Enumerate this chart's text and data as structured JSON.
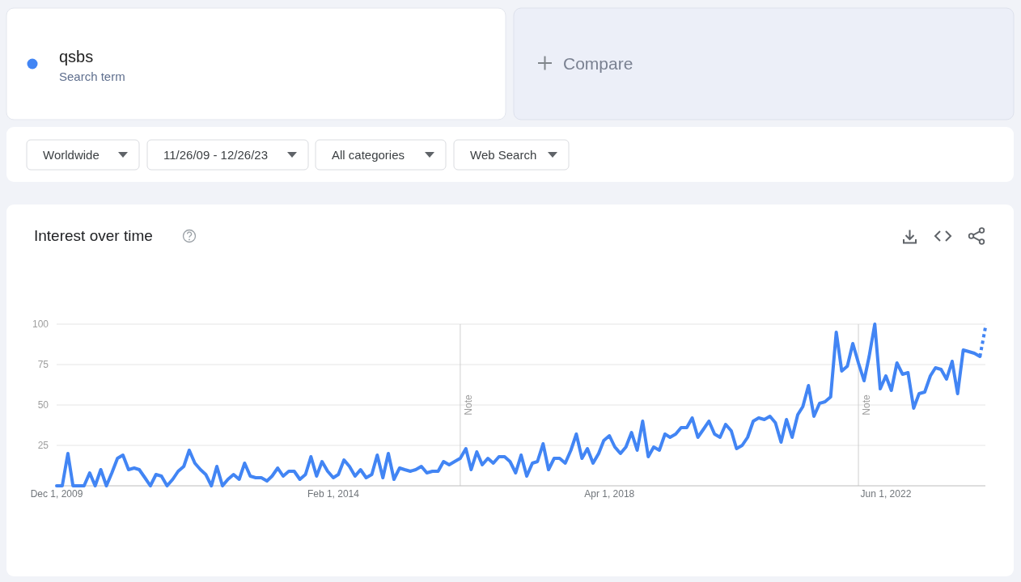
{
  "chart_data": {
    "type": "line",
    "title": "Interest over time",
    "x": [
      "2009-12",
      "2010-01",
      "2010-02",
      "2010-03",
      "2010-04",
      "2010-05",
      "2010-06",
      "2010-07",
      "2010-08",
      "2010-09",
      "2010-10",
      "2010-11",
      "2010-12",
      "2011-01",
      "2011-02",
      "2011-03",
      "2011-04",
      "2011-05",
      "2011-06",
      "2011-07",
      "2011-08",
      "2011-09",
      "2011-10",
      "2011-11",
      "2011-12",
      "2012-01",
      "2012-02",
      "2012-03",
      "2012-04",
      "2012-05",
      "2012-06",
      "2012-07",
      "2012-08",
      "2012-09",
      "2012-10",
      "2012-11",
      "2012-12",
      "2013-01",
      "2013-02",
      "2013-03",
      "2013-04",
      "2013-05",
      "2013-06",
      "2013-07",
      "2013-08",
      "2013-09",
      "2013-10",
      "2013-11",
      "2013-12",
      "2014-01",
      "2014-02",
      "2014-03",
      "2014-04",
      "2014-05",
      "2014-06",
      "2014-07",
      "2014-08",
      "2014-09",
      "2014-10",
      "2014-11",
      "2014-12",
      "2015-01",
      "2015-02",
      "2015-03",
      "2015-04",
      "2015-05",
      "2015-06",
      "2015-07",
      "2015-08",
      "2015-09",
      "2015-10",
      "2015-11",
      "2015-12",
      "2016-01",
      "2016-02",
      "2016-03",
      "2016-04",
      "2016-05",
      "2016-06",
      "2016-07",
      "2016-08",
      "2016-09",
      "2016-10",
      "2016-11",
      "2016-12",
      "2017-01",
      "2017-02",
      "2017-03",
      "2017-04",
      "2017-05",
      "2017-06",
      "2017-07",
      "2017-08",
      "2017-09",
      "2017-10",
      "2017-11",
      "2017-12",
      "2018-01",
      "2018-02",
      "2018-03",
      "2018-04",
      "2018-05",
      "2018-06",
      "2018-07",
      "2018-08",
      "2018-09",
      "2018-10",
      "2018-11",
      "2018-12",
      "2019-01",
      "2019-02",
      "2019-03",
      "2019-04",
      "2019-05",
      "2019-06",
      "2019-07",
      "2019-08",
      "2019-09",
      "2019-10",
      "2019-11",
      "2019-12",
      "2020-01",
      "2020-02",
      "2020-03",
      "2020-04",
      "2020-05",
      "2020-06",
      "2020-07",
      "2020-08",
      "2020-09",
      "2020-10",
      "2020-11",
      "2020-12",
      "2021-01",
      "2021-02",
      "2021-03",
      "2021-04",
      "2021-05",
      "2021-06",
      "2021-07",
      "2021-08",
      "2021-09",
      "2021-10",
      "2021-11",
      "2021-12",
      "2022-01",
      "2022-02",
      "2022-03",
      "2022-04",
      "2022-05",
      "2022-06",
      "2022-07",
      "2022-08",
      "2022-09",
      "2022-10",
      "2022-11",
      "2022-12",
      "2023-01",
      "2023-02",
      "2023-03",
      "2023-04",
      "2023-05",
      "2023-06",
      "2023-07",
      "2023-08",
      "2023-09",
      "2023-10",
      "2023-11"
    ],
    "series": [
      {
        "name": "qsbs",
        "color": "#4285f4",
        "values": [
          0,
          0,
          20,
          0,
          0,
          0,
          8,
          0,
          10,
          0,
          8,
          17,
          19,
          10,
          11,
          10,
          5,
          0,
          7,
          6,
          0,
          4,
          9,
          12,
          22,
          14,
          10,
          7,
          0,
          12,
          0,
          4,
          7,
          4,
          14,
          6,
          5,
          5,
          3,
          6,
          11,
          6,
          9,
          9,
          4,
          7,
          18,
          6,
          15,
          9,
          5,
          7,
          16,
          12,
          6,
          10,
          5,
          7,
          19,
          5,
          20,
          4,
          11,
          10,
          9,
          10,
          12,
          8,
          9,
          9,
          15,
          13,
          15,
          17,
          23,
          10,
          21,
          13,
          17,
          14,
          18,
          18,
          15,
          8,
          19,
          6,
          14,
          15,
          26,
          10,
          17,
          17,
          14,
          22,
          32,
          17,
          23,
          14,
          20,
          28,
          31,
          24,
          20,
          24,
          33,
          22,
          40,
          18,
          24,
          22,
          32,
          30,
          32,
          36,
          36,
          42,
          30,
          35,
          40,
          32,
          30,
          38,
          34,
          23,
          25,
          30,
          40,
          42,
          41,
          43,
          39,
          27,
          41,
          30,
          44,
          49,
          62,
          43,
          51,
          52,
          55,
          95,
          71,
          74,
          88,
          76,
          65,
          80,
          100,
          60,
          68,
          59,
          76,
          69,
          70,
          48,
          57,
          58,
          68,
          73,
          72,
          66,
          77,
          57,
          84,
          83,
          82,
          80
        ]
      },
      {
        "type": "line",
        "x": [
          "2023-11",
          "2023-12"
        ],
        "values": [
          80,
          98
        ],
        "color": "#4285f4",
        "line_style": "dotted"
      }
    ],
    "line_style": "solid",
    "xlim": [
      "2009-12-01",
      "2023-12-01"
    ],
    "xticks": [
      {
        "value": "2009-12-01",
        "label": "Dec 1, 2009"
      },
      {
        "value": "2014-02-01",
        "label": "Feb 1, 2014"
      },
      {
        "value": "2018-04-01",
        "label": "Apr 1, 2018"
      },
      {
        "value": "2022-06-01",
        "label": "Jun 1, 2022"
      }
    ],
    "ylim": [
      0,
      100
    ],
    "yticks": [
      25,
      50,
      75,
      100
    ],
    "grid": "y",
    "legend": "top left",
    "ref_lines": [
      {
        "axis": "x",
        "value": "2016-01-01",
        "label": "Note"
      },
      {
        "axis": "x",
        "value": "2022-01-01",
        "label": "Note"
      }
    ],
    "annotations": [
      "Search term",
      "Compare",
      "Worldwide",
      "11/26/09 - 12/26/23",
      "All categories",
      "Web Search"
    ]
  }
}
